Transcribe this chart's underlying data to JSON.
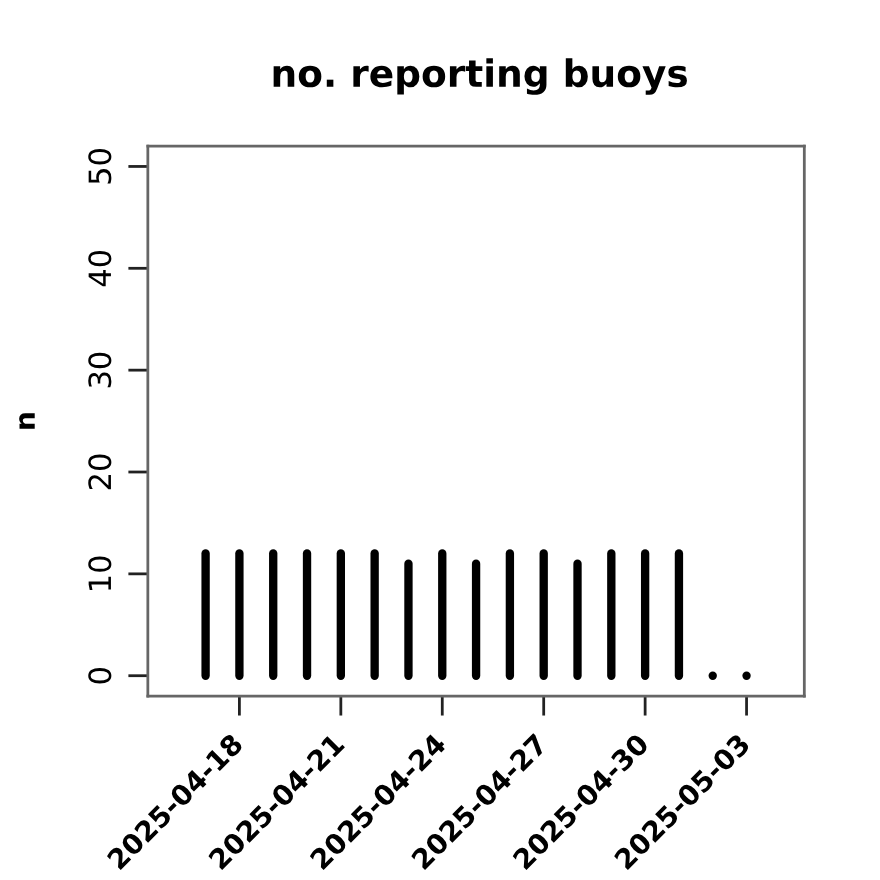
{
  "chart_data": {
    "type": "bar",
    "title": "no. reporting buoys",
    "ylabel": "n",
    "x": [
      "2025-04-17",
      "2025-04-18",
      "2025-04-19",
      "2025-04-20",
      "2025-04-21",
      "2025-04-22",
      "2025-04-23",
      "2025-04-24",
      "2025-04-25",
      "2025-04-26",
      "2025-04-27",
      "2025-04-28",
      "2025-04-29",
      "2025-04-30",
      "2025-05-01",
      "2025-05-02",
      "2025-05-03"
    ],
    "values": [
      12,
      12,
      12,
      12,
      12,
      12,
      11,
      12,
      11,
      12,
      12,
      11,
      12,
      12,
      12,
      0,
      0
    ],
    "color": "#000000",
    "xlim": [
      "2025-04-15T07:00",
      "2025-05-04T17:00"
    ],
    "xticks": [
      "2025-04-18",
      "2025-04-21",
      "2025-04-24",
      "2025-04-27",
      "2025-04-30",
      "2025-05-03"
    ],
    "ylim": [
      -2,
      52
    ],
    "yticks": [
      0,
      10,
      20,
      30,
      40,
      50
    ],
    "grid": false,
    "legend": false
  }
}
